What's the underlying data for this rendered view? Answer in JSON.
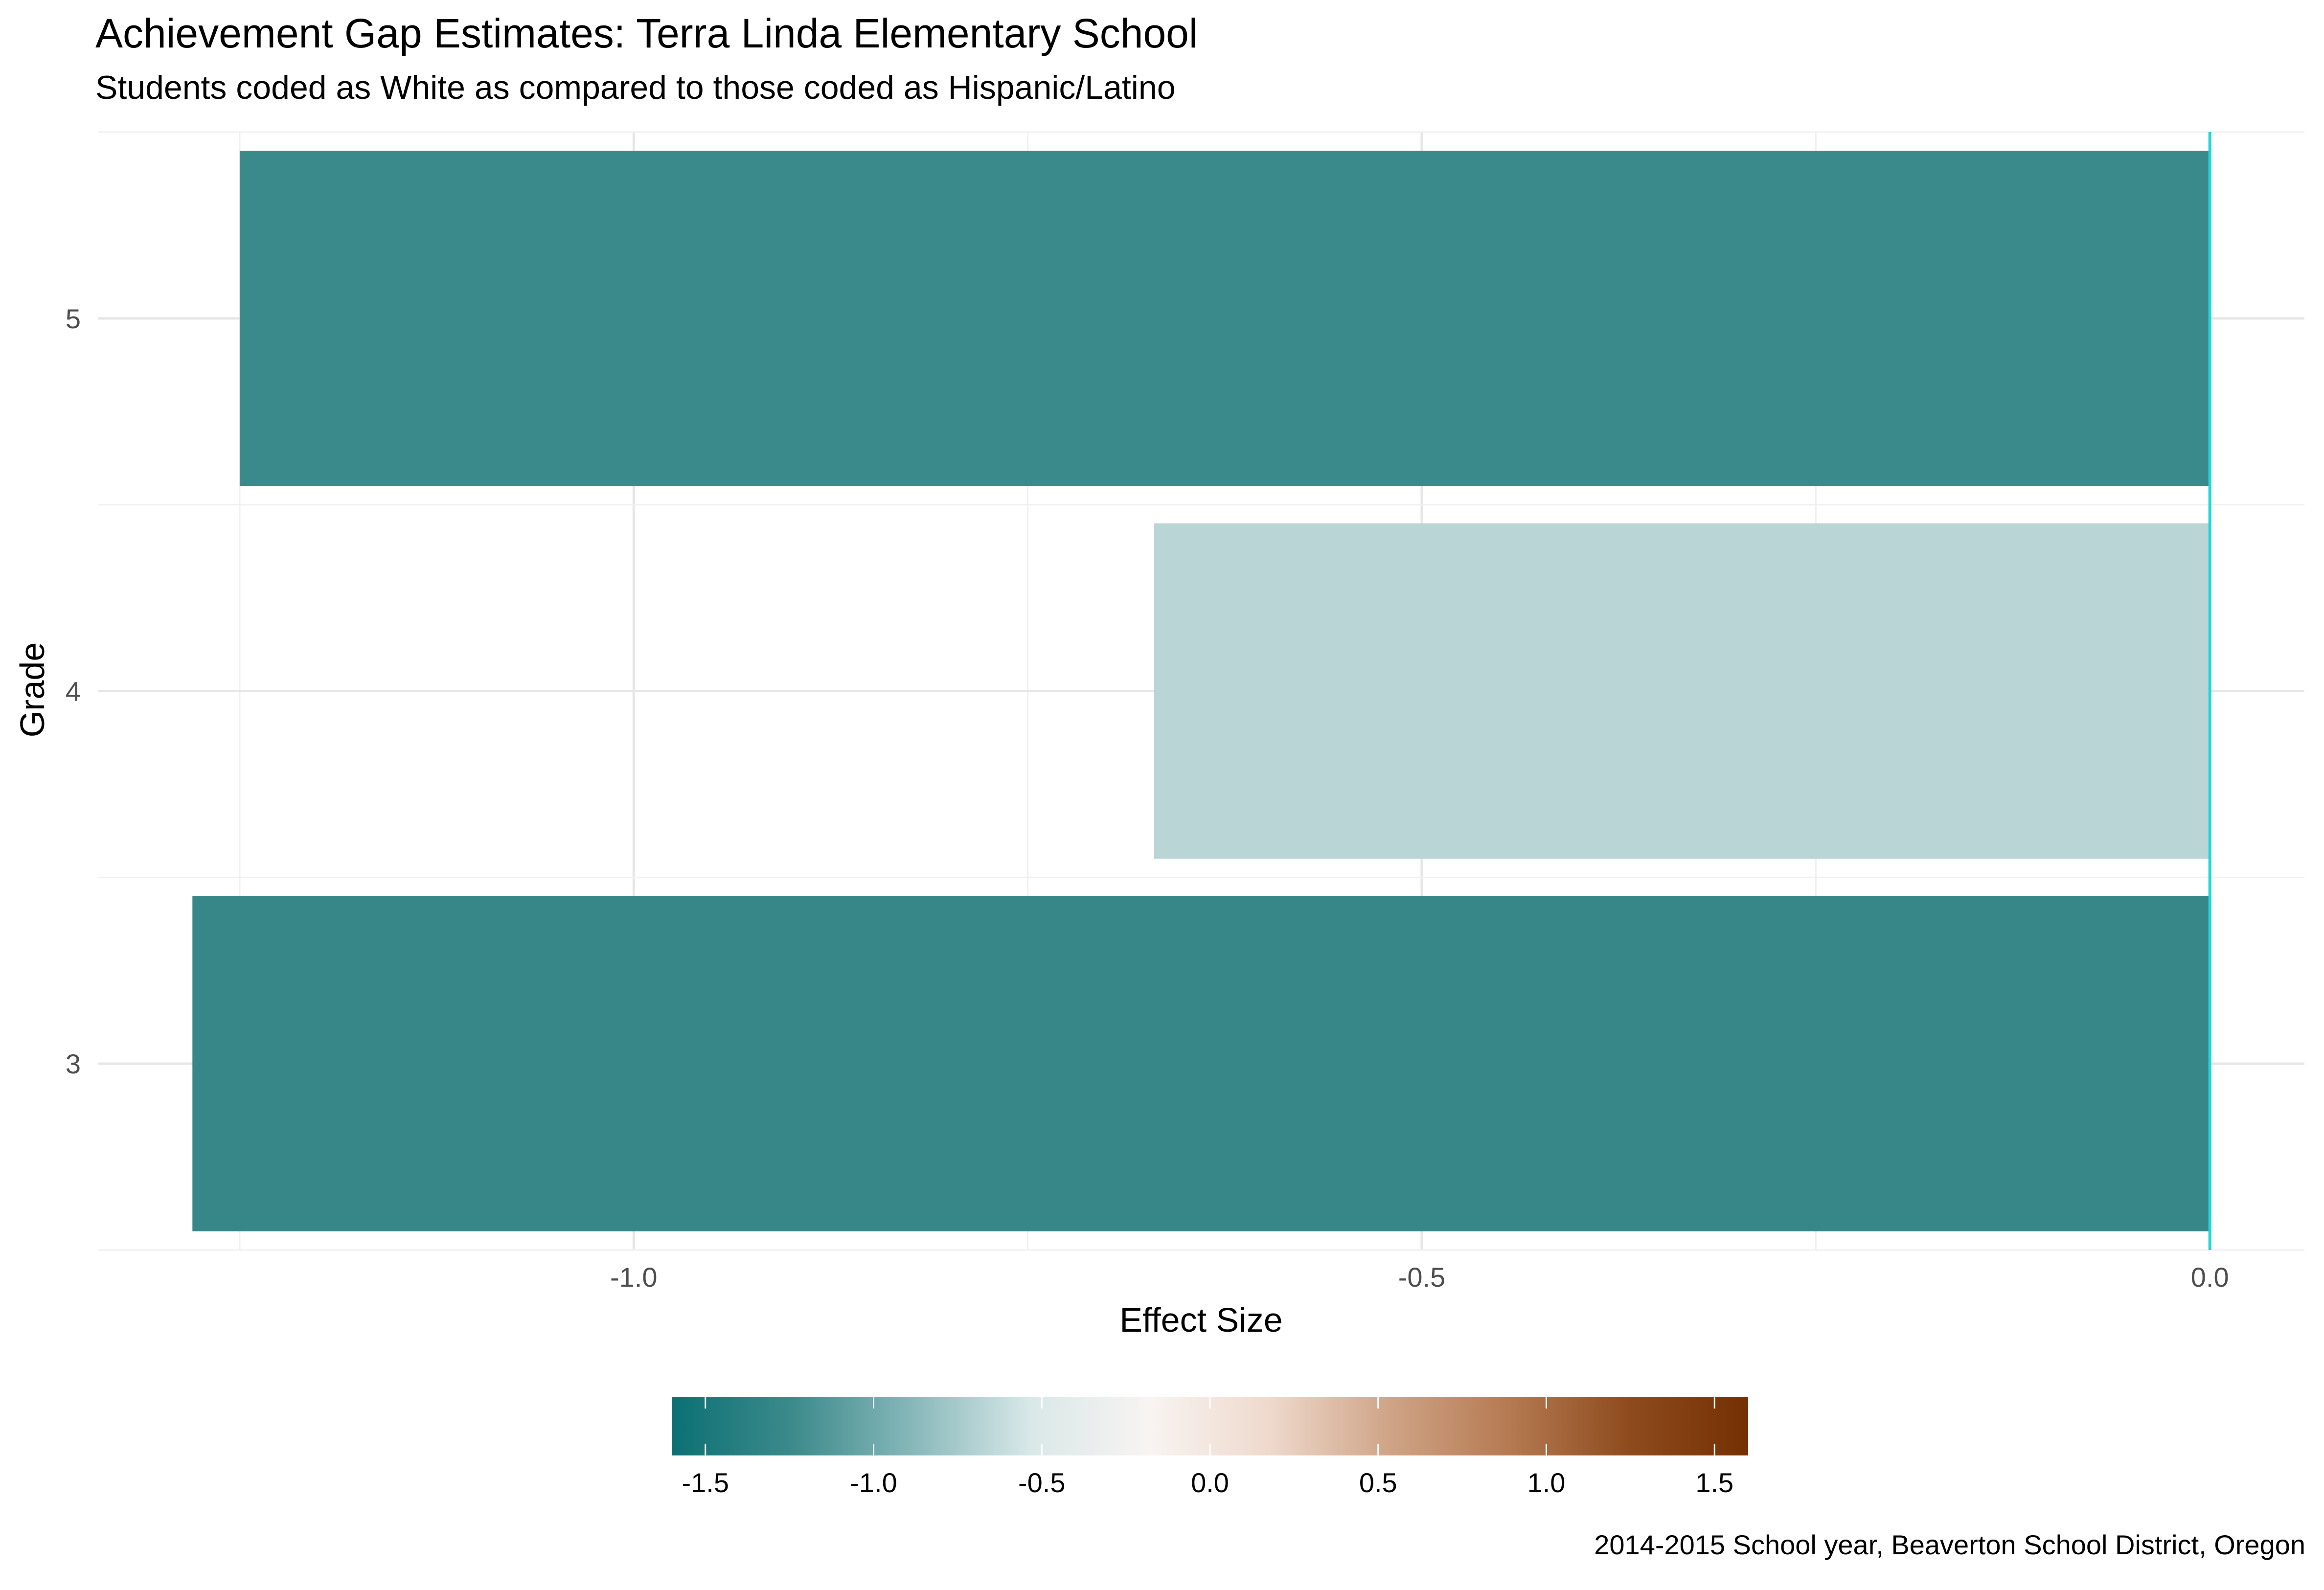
{
  "chart_data": {
    "type": "bar",
    "orientation": "horizontal",
    "title": "Achievement Gap Estimates: Terra Linda Elementary School",
    "subtitle": "Students coded as White as compared to those coded as Hispanic/Latino",
    "caption": "2014-2015 School year, Beaverton School District, Oregon",
    "xlabel": "Effect Size",
    "ylabel": "Grade",
    "categories": [
      "3",
      "4",
      "5"
    ],
    "values": [
      -1.28,
      -0.67,
      -1.25
    ],
    "xlim": [
      -1.34,
      0.06
    ],
    "x_ticks": [
      "-1.0",
      "-0.5",
      "0.0"
    ],
    "x_tick_values": [
      -1.0,
      -0.5,
      0.0
    ],
    "reference_line": {
      "x": 0.0,
      "color": "#22D5D8"
    },
    "grid": true,
    "legend": {
      "type": "colorbar",
      "position": "bottom",
      "range": [
        -1.6,
        1.6
      ],
      "ticks": [
        "-1.5",
        "-1.0",
        "-0.5",
        "0.0",
        "0.5",
        "1.0",
        "1.5"
      ],
      "tick_values": [
        -1.5,
        -1.0,
        -0.5,
        0.0,
        0.5,
        1.0,
        1.5
      ],
      "palette": [
        "#0B7074",
        "#3C8A8B",
        "#86B7B9",
        "#D9E8E8",
        "#F8F4F2",
        "#EED9CC",
        "#CFA487",
        "#B57A52",
        "#8E4B1E",
        "#743003"
      ]
    }
  }
}
